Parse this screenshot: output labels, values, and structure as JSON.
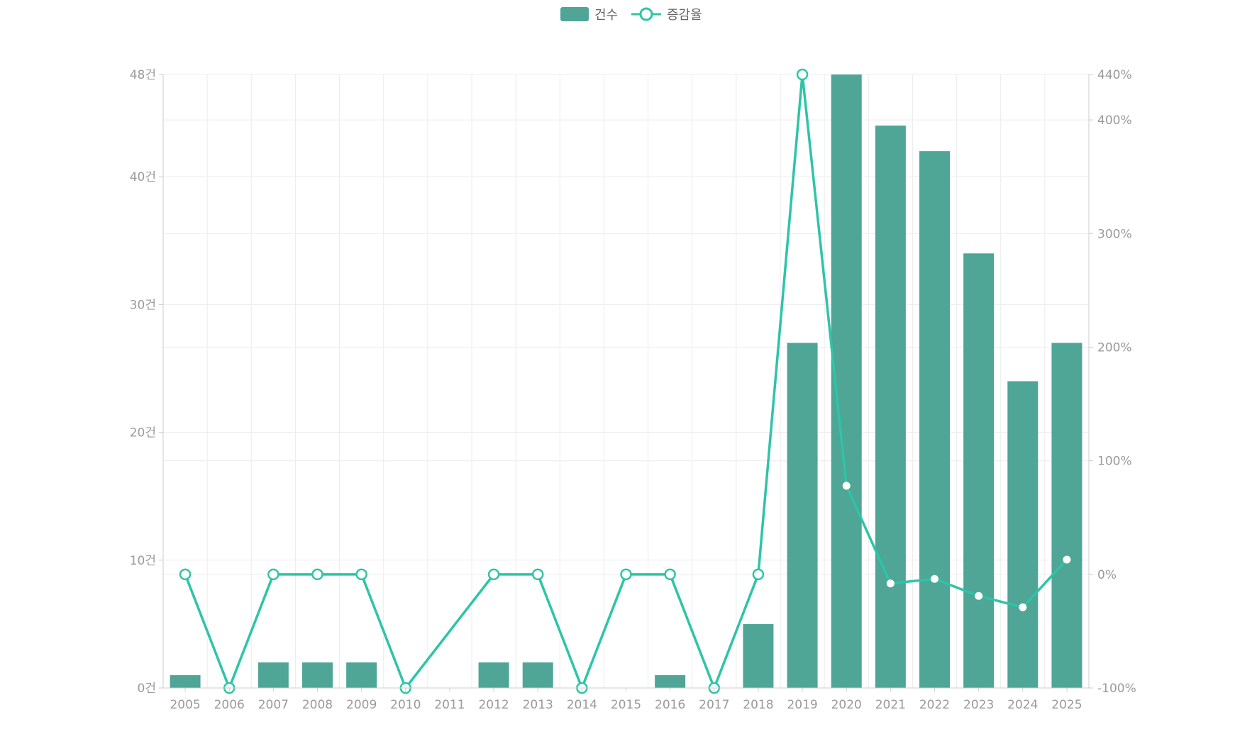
{
  "chart_data": {
    "type": "bar",
    "categories": [
      "2005",
      "2006",
      "2007",
      "2008",
      "2009",
      "2010",
      "2011",
      "2012",
      "2013",
      "2014",
      "2015",
      "2016",
      "2017",
      "2018",
      "2019",
      "2020",
      "2021",
      "2022",
      "2023",
      "2024",
      "2025"
    ],
    "series": [
      {
        "name": "건수",
        "type": "bar",
        "axis": "left",
        "values": [
          1,
          0,
          2,
          2,
          2,
          0,
          0,
          2,
          2,
          0,
          0,
          1,
          0,
          5,
          27,
          48,
          44,
          42,
          34,
          24,
          27
        ]
      },
      {
        "name": "증감율",
        "type": "line",
        "axis": "right",
        "values": [
          0,
          -100,
          0,
          0,
          0,
          -100,
          null,
          0,
          0,
          -100,
          0,
          0,
          -100,
          0,
          440,
          78,
          -8,
          -4,
          -19,
          -29,
          13
        ]
      }
    ],
    "y_left": {
      "ylim": [
        0,
        48
      ],
      "ticks": [
        0,
        10,
        20,
        30,
        40,
        48
      ],
      "unit": "건"
    },
    "y_right": {
      "ylim": [
        -100,
        440
      ],
      "ticks": [
        -100,
        0,
        100,
        200,
        300,
        400,
        440
      ],
      "unit": "%"
    },
    "grid": true,
    "legend_position": "top-center",
    "colors": {
      "bar": "#4fa596",
      "line": "#2ec4a7",
      "grid": "#ececec",
      "axis": "#cccccc",
      "text": "#9a9a9a"
    }
  }
}
